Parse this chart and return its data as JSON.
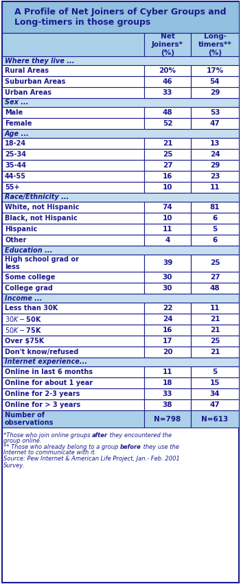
{
  "title": "A Profile of Net Joiners of Cyber Groups and\nLong-timers in those groups",
  "col1_header": "Net\nJoiners*\n(%)",
  "col2_header": "Long-\ntimers**\n(%)",
  "title_bg": "#92c0e0",
  "header_bg": "#aad0ea",
  "section_bg": "#c5dff0",
  "row_bg": "#ffffff",
  "border_color": "#1a1a8c",
  "text_color": "#1a1a8c",
  "sections": [
    {
      "header": "Where they live ...",
      "rows": [
        {
          "label": "Rural Areas",
          "v1": "20%",
          "v2": "17%"
        },
        {
          "label": "Suburban Areas",
          "v1": "46",
          "v2": "54"
        },
        {
          "label": "Urban Areas",
          "v1": "33",
          "v2": "29"
        }
      ]
    },
    {
      "header": "Sex ...",
      "rows": [
        {
          "label": "Male",
          "v1": "48",
          "v2": "53"
        },
        {
          "label": "Female",
          "v1": "52",
          "v2": "47"
        }
      ]
    },
    {
      "header": "Age ...",
      "rows": [
        {
          "label": "18-24",
          "v1": "21",
          "v2": "13"
        },
        {
          "label": "25-34",
          "v1": "25",
          "v2": "24"
        },
        {
          "label": "35-44",
          "v1": "27",
          "v2": "29"
        },
        {
          "label": "44-55",
          "v1": "16",
          "v2": "23"
        },
        {
          "label": "55+",
          "v1": "10",
          "v2": "11"
        }
      ]
    },
    {
      "header": "Race/Ethnicity ...",
      "rows": [
        {
          "label": "White, not Hispanic",
          "v1": "74",
          "v2": "81"
        },
        {
          "label": "Black, not Hispanic",
          "v1": "10",
          "v2": "6"
        },
        {
          "label": "Hispanic",
          "v1": "11",
          "v2": "5"
        },
        {
          "label": "Other",
          "v1": "4",
          "v2": "6"
        }
      ]
    },
    {
      "header": "Education ...",
      "rows": [
        {
          "label": "High school grad or\nless",
          "v1": "39",
          "v2": "25"
        },
        {
          "label": "Some college",
          "v1": "30",
          "v2": "27"
        },
        {
          "label": "College grad",
          "v1": "30",
          "v2": "48"
        }
      ]
    },
    {
      "header": "Income ...",
      "rows": [
        {
          "label": "Less than 30K",
          "v1": "22",
          "v2": "11"
        },
        {
          "label": "$30K-$50K",
          "v1": "24",
          "v2": "21"
        },
        {
          "label": "$50K-$75K",
          "v1": "16",
          "v2": "21"
        },
        {
          "label": "Over $75K",
          "v1": "17",
          "v2": "25"
        },
        {
          "label": "Don't know/refused",
          "v1": "20",
          "v2": "21"
        }
      ]
    },
    {
      "header": "Internet experience...",
      "rows": [
        {
          "label": "Online in last 6 months",
          "v1": "11",
          "v2": "5"
        },
        {
          "label": "Online for about 1 year",
          "v1": "18",
          "v2": "15"
        },
        {
          "label": "Online for 2-3 years",
          "v1": "33",
          "v2": "34"
        },
        {
          "label": "Online for > 3 years",
          "v1": "38",
          "v2": "47"
        }
      ]
    }
  ],
  "footer_row": {
    "label": "Number of\nobservations",
    "v1": "N=798",
    "v2": "N=613"
  },
  "footnote1_pre": "*Those who join online groups ",
  "footnote1_bold": "after",
  "footnote1_post": " they encountered the\ngroup online.",
  "footnote2_pre": "** Those who already belong to a group ",
  "footnote2_bold": "before",
  "footnote2_post": " they use the\nInternet to communicate with it.",
  "footnote3": "Source: Pew Internet & American Life Project, Jan.- Feb. 2001\nSurvey."
}
